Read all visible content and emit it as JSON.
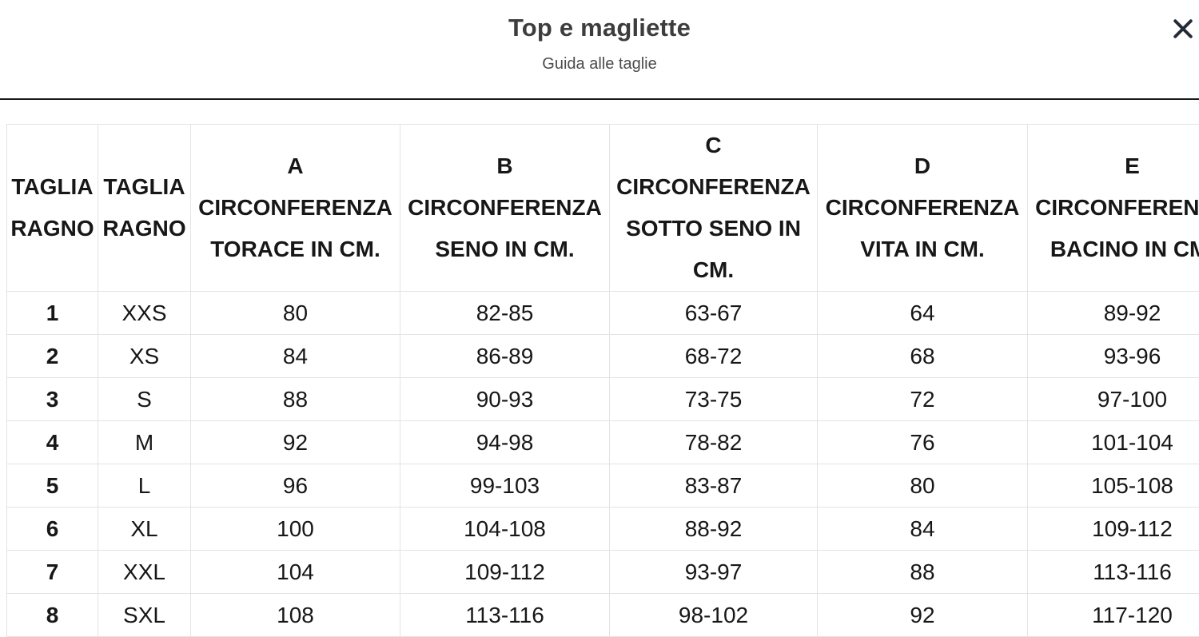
{
  "modal": {
    "title": "Top e magliette",
    "subtitle": "Guida alle taglie"
  },
  "icons": {
    "close": "x-close-glyph"
  },
  "colors": {
    "title_text": "#3d3d3d",
    "subtitle_text": "#4c4c4c",
    "table_text": "#171717",
    "table_border": "#e3e3e3",
    "divider": "#1a1a1a",
    "close_icon": "#242b38"
  },
  "table": {
    "columns": [
      {
        "id": "taglia-ragno-num",
        "lines": [
          "TAGLIA",
          "RAGNO"
        ]
      },
      {
        "id": "taglia-ragno-size",
        "lines": [
          "TAGLIA",
          "RAGNO"
        ]
      },
      {
        "id": "circonferenza-torace",
        "lines": [
          "A",
          "CIRCONFERENZA",
          "TORACE IN CM."
        ]
      },
      {
        "id": "circonferenza-seno",
        "lines": [
          "B",
          "CIRCONFERENZA",
          "SENO IN CM."
        ]
      },
      {
        "id": "circonferenza-sotto-seno",
        "lines": [
          "C",
          "CIRCONFERENZA",
          "SOTTO SENO IN",
          "CM."
        ]
      },
      {
        "id": "circonferenza-vita",
        "lines": [
          "D",
          "CIRCONFERENZA",
          "VITA IN CM."
        ]
      },
      {
        "id": "circonferenza-bacino",
        "lines": [
          "E",
          "CIRCONFERENZA",
          "BACINO IN CM."
        ]
      }
    ],
    "rows": [
      [
        "1",
        "XXS",
        "80",
        "82-85",
        "63-67",
        "64",
        "89-92"
      ],
      [
        "2",
        "XS",
        "84",
        "86-89",
        "68-72",
        "68",
        "93-96"
      ],
      [
        "3",
        "S",
        "88",
        "90-93",
        "73-75",
        "72",
        "97-100"
      ],
      [
        "4",
        "M",
        "92",
        "94-98",
        "78-82",
        "76",
        "101-104"
      ],
      [
        "5",
        "L",
        "96",
        "99-103",
        "83-87",
        "80",
        "105-108"
      ],
      [
        "6",
        "XL",
        "100",
        "104-108",
        "88-92",
        "84",
        "109-112"
      ],
      [
        "7",
        "XXL",
        "104",
        "109-112",
        "93-97",
        "88",
        "113-116"
      ],
      [
        "8",
        "SXL",
        "108",
        "113-116",
        "98-102",
        "92",
        "117-120"
      ]
    ]
  }
}
